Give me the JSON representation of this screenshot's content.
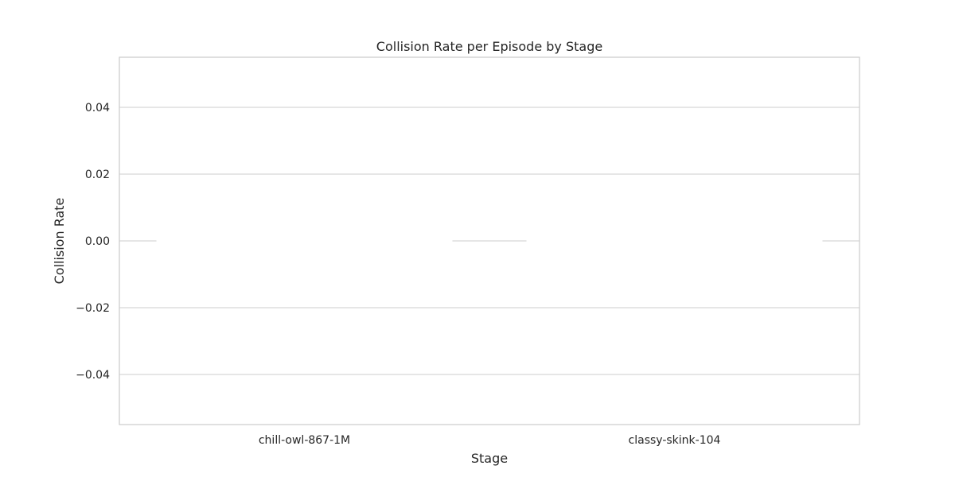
{
  "chart_data": {
    "type": "bar",
    "title": "Collision Rate per Episode by Stage",
    "xlabel": "Stage",
    "ylabel": "Collision Rate",
    "categories": [
      "chill-owl-867-1M",
      "classy-skink-104"
    ],
    "values": [
      0,
      0
    ],
    "ylim": [
      -0.055,
      0.055
    ],
    "yticks": [
      0.04,
      0.02,
      0.0,
      -0.02,
      -0.04
    ],
    "ytick_labels": [
      "0.04",
      "0.02",
      "0.00",
      "−0.02",
      "−0.04"
    ],
    "grid": true,
    "style": {
      "grid_color": "#cccccc",
      "frame_color": "#cccccc",
      "bar_color": "#ffffff",
      "text_color": "#262626",
      "background": "#ffffff"
    }
  }
}
